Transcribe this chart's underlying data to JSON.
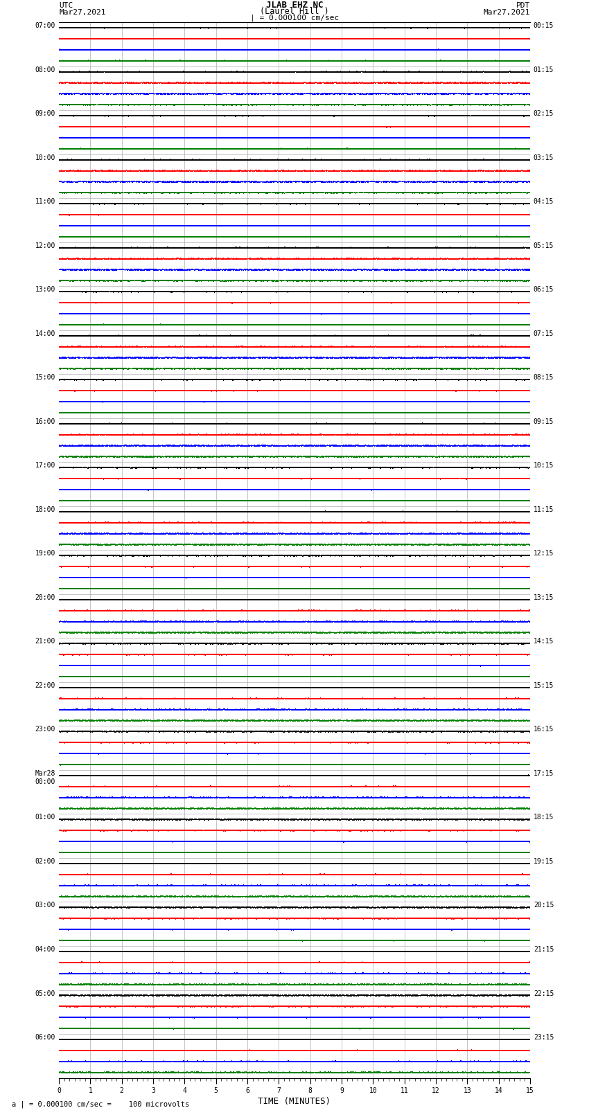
{
  "title_line1": "JLAB EHZ NC",
  "title_line2": "(Laurel Hill )",
  "scale_text": "| = 0.000100 cm/sec",
  "utc_label": "UTC",
  "utc_date": "Mar27,2021",
  "pdt_label": "PDT",
  "pdt_date": "Mar27,2021",
  "xlabel": "TIME (MINUTES)",
  "footnote": "a | = 0.000100 cm/sec =    100 microvolts",
  "xlim": [
    0,
    15
  ],
  "trace_colors": [
    "black",
    "red",
    "blue",
    "green"
  ],
  "background_color": "white",
  "left_labels_utc": [
    "07:00",
    "08:00",
    "09:00",
    "10:00",
    "11:00",
    "12:00",
    "13:00",
    "14:00",
    "15:00",
    "16:00",
    "17:00",
    "18:00",
    "19:00",
    "20:00",
    "21:00",
    "22:00",
    "23:00",
    "Mar28\n00:00",
    "01:00",
    "02:00",
    "03:00",
    "04:00",
    "05:00",
    "06:00"
  ],
  "right_labels_pdt": [
    "00:15",
    "01:15",
    "02:15",
    "03:15",
    "04:15",
    "05:15",
    "06:15",
    "07:15",
    "08:15",
    "09:15",
    "10:15",
    "11:15",
    "12:15",
    "13:15",
    "14:15",
    "15:15",
    "16:15",
    "17:15",
    "18:15",
    "19:15",
    "20:15",
    "21:15",
    "22:15",
    "23:15"
  ],
  "n_rows": 24,
  "traces_per_row": 4,
  "noise_amplitude": 0.06,
  "grid_color": "#999999",
  "grid_linewidth": 0.4,
  "trace_linewidth": 0.5,
  "fig_width": 8.5,
  "fig_height": 16.13,
  "dpi": 100
}
